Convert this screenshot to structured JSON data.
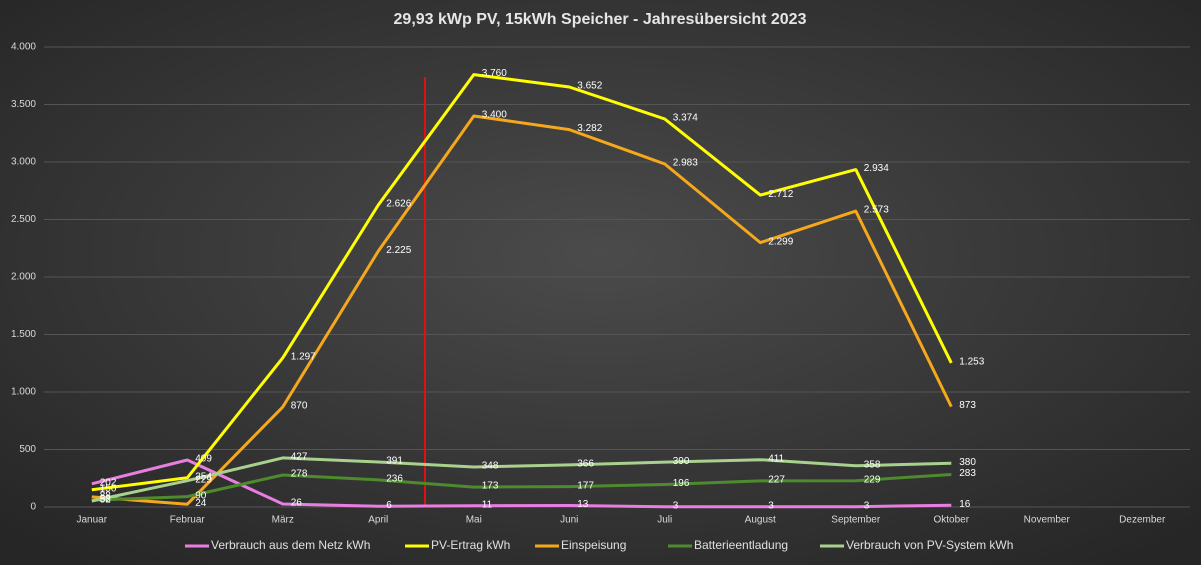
{
  "chart_data": {
    "type": "line",
    "title": "29,93 kWp PV, 15kWh Speicher - Jahresübersicht 2023",
    "categories": [
      "Januar",
      "Februar",
      "März",
      "April",
      "Mai",
      "Juni",
      "Juli",
      "August",
      "September",
      "Oktober",
      "November",
      "Dezember"
    ],
    "ylim": [
      0,
      4000
    ],
    "yticks": [
      0,
      500,
      {
        "value": 1000,
        "label": "1.000"
      },
      {
        "value": 1500,
        "label": "1.500"
      },
      {
        "value": 2000,
        "label": "2.000"
      },
      {
        "value": 2500,
        "label": "2.500"
      },
      {
        "value": 3000,
        "label": "3.000"
      },
      {
        "value": 3500,
        "label": "3.500"
      },
      {
        "value": 4000,
        "label": "4.000"
      }
    ],
    "grid": true,
    "legend": "bottom",
    "series": [
      {
        "name": "Verbrauch aus dem Netz kWh",
        "color": "#e87ee0",
        "values": [
          202,
          409,
          26,
          6,
          11,
          13,
          3,
          3,
          3,
          16,
          null,
          null
        ],
        "value_labels": [
          "202",
          "409",
          "26",
          "6",
          "11",
          "13",
          "3",
          "3",
          "3",
          "16",
          null,
          null
        ]
      },
      {
        "name": "PV-Ertrag    kWh",
        "color": "#ffff00",
        "values": [
          150,
          254,
          1297,
          2626,
          3760,
          3652,
          3374,
          2712,
          2934,
          1253,
          null,
          null
        ],
        "value_labels": [
          "150",
          "254",
          "1.297",
          "2.626",
          "3.760",
          "3.652",
          "3.374",
          "2.712",
          "2.934",
          "1.253",
          null,
          null
        ]
      },
      {
        "name": "Einspeisung",
        "color": "#f5a81c",
        "values": [
          88,
          24,
          870,
          2225,
          3400,
          3282,
          2983,
          2299,
          2573,
          873,
          null,
          null
        ],
        "value_labels": [
          "88",
          "24",
          "870",
          "2.225",
          "3.400",
          "3.282",
          "2.983",
          "2.299",
          "2.573",
          "873",
          null,
          null
        ]
      },
      {
        "name": "Batterieentladung",
        "color": "#4e8a2e",
        "values": [
          58,
          90,
          278,
          236,
          173,
          177,
          196,
          227,
          229,
          283,
          null,
          null
        ],
        "value_labels": [
          "58",
          "90",
          "278",
          "236",
          "173",
          "177",
          "196",
          "227",
          "229",
          "283",
          null,
          null
        ]
      },
      {
        "name": "Verbrauch von PV-System kWh",
        "color": "#a9d18e",
        "values": [
          52,
          229,
          427,
          391,
          348,
          366,
          390,
          411,
          358,
          380,
          null,
          null
        ],
        "value_labels": [
          "52",
          "229",
          "427",
          "391",
          "348",
          "366",
          "390",
          "411",
          "358",
          "380",
          null,
          null
        ]
      }
    ]
  }
}
